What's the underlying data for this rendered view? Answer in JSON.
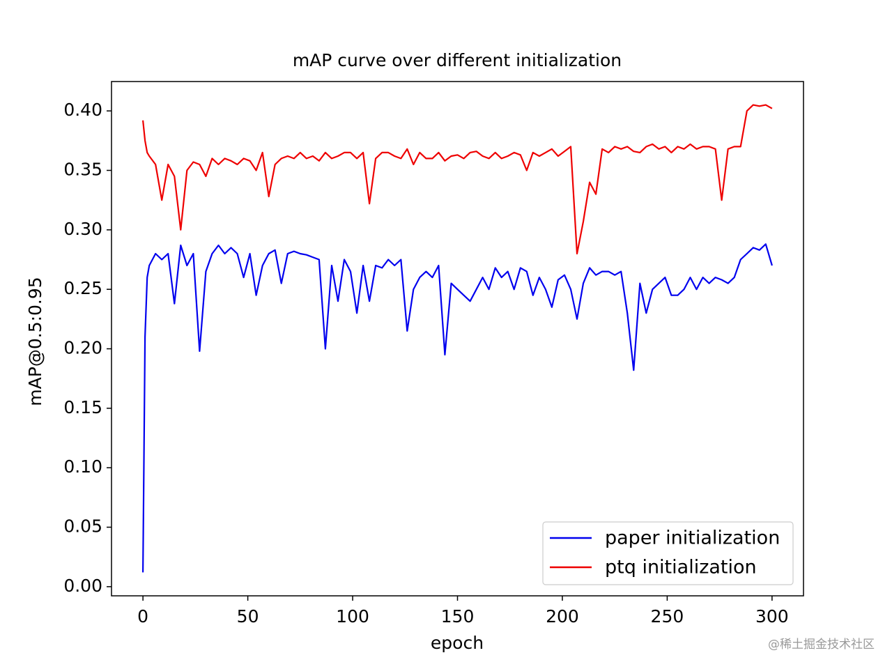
{
  "chart_data": {
    "type": "line",
    "title": "mAP curve over different initialization",
    "x_label": "epoch",
    "y_label": "mAP@0.5:0.95",
    "x": [
      0,
      1,
      2,
      3,
      6,
      9,
      12,
      15,
      18,
      21,
      24,
      27,
      30,
      33,
      36,
      39,
      42,
      45,
      48,
      51,
      54,
      57,
      60,
      63,
      66,
      69,
      72,
      75,
      78,
      81,
      84,
      87,
      90,
      93,
      96,
      99,
      102,
      105,
      108,
      111,
      114,
      117,
      120,
      123,
      126,
      129,
      132,
      135,
      138,
      141,
      144,
      147,
      150,
      153,
      156,
      159,
      162,
      165,
      168,
      171,
      174,
      177,
      180,
      183,
      186,
      189,
      192,
      195,
      198,
      201,
      204,
      207,
      210,
      213,
      216,
      219,
      222,
      225,
      228,
      231,
      234,
      237,
      240,
      243,
      246,
      249,
      252,
      255,
      258,
      261,
      264,
      267,
      270,
      273,
      276,
      279,
      282,
      285,
      288,
      291,
      294,
      297,
      300
    ],
    "series": [
      {
        "name": "paper initialization",
        "color": "#0000ee",
        "values": [
          0.012,
          0.21,
          0.26,
          0.27,
          0.28,
          0.275,
          0.28,
          0.238,
          0.287,
          0.27,
          0.28,
          0.198,
          0.265,
          0.28,
          0.287,
          0.28,
          0.285,
          0.28,
          0.26,
          0.28,
          0.245,
          0.27,
          0.28,
          0.283,
          0.255,
          0.28,
          0.282,
          0.28,
          0.279,
          0.277,
          0.275,
          0.2,
          0.27,
          0.24,
          0.275,
          0.265,
          0.23,
          0.27,
          0.24,
          0.27,
          0.268,
          0.275,
          0.27,
          0.275,
          0.215,
          0.25,
          0.26,
          0.265,
          0.26,
          0.27,
          0.195,
          0.255,
          0.25,
          0.245,
          0.24,
          0.25,
          0.26,
          0.25,
          0.268,
          0.26,
          0.265,
          0.25,
          0.268,
          0.265,
          0.245,
          0.26,
          0.25,
          0.235,
          0.258,
          0.262,
          0.25,
          0.225,
          0.255,
          0.268,
          0.262,
          0.265,
          0.265,
          0.262,
          0.265,
          0.23,
          0.182,
          0.255,
          0.23,
          0.25,
          0.255,
          0.26,
          0.245,
          0.245,
          0.25,
          0.26,
          0.25,
          0.26,
          0.255,
          0.26,
          0.258,
          0.255,
          0.26,
          0.275,
          0.28,
          0.285,
          0.283,
          0.288,
          0.27
        ]
      },
      {
        "name": "ptq initialization",
        "color": "#ee0000",
        "values": [
          0.392,
          0.375,
          0.365,
          0.362,
          0.355,
          0.325,
          0.355,
          0.345,
          0.3,
          0.35,
          0.357,
          0.355,
          0.345,
          0.36,
          0.355,
          0.36,
          0.358,
          0.355,
          0.36,
          0.358,
          0.35,
          0.365,
          0.328,
          0.355,
          0.36,
          0.362,
          0.36,
          0.365,
          0.36,
          0.362,
          0.358,
          0.365,
          0.36,
          0.362,
          0.365,
          0.365,
          0.36,
          0.365,
          0.322,
          0.36,
          0.365,
          0.365,
          0.362,
          0.36,
          0.368,
          0.355,
          0.365,
          0.36,
          0.36,
          0.365,
          0.358,
          0.362,
          0.363,
          0.36,
          0.365,
          0.366,
          0.362,
          0.36,
          0.365,
          0.36,
          0.362,
          0.365,
          0.363,
          0.35,
          0.365,
          0.362,
          0.365,
          0.368,
          0.362,
          0.366,
          0.37,
          0.28,
          0.307,
          0.34,
          0.33,
          0.368,
          0.365,
          0.37,
          0.368,
          0.37,
          0.366,
          0.365,
          0.37,
          0.372,
          0.368,
          0.37,
          0.365,
          0.37,
          0.368,
          0.372,
          0.368,
          0.37,
          0.37,
          0.368,
          0.325,
          0.368,
          0.37,
          0.37,
          0.4,
          0.405,
          0.404,
          0.405,
          0.402
        ]
      }
    ],
    "xlim": [
      -15,
      315
    ],
    "ylim": [
      -0.0077,
      0.4247
    ],
    "xticks": [
      0,
      50,
      100,
      150,
      200,
      250,
      300
    ],
    "yticks": [
      {
        "value": 0,
        "label": "0.00"
      },
      {
        "value": 0.05,
        "label": "0.05"
      },
      {
        "value": 0.1,
        "label": "0.10"
      },
      {
        "value": 0.15,
        "label": "0.15"
      },
      {
        "value": 0.2,
        "label": "0.20"
      },
      {
        "value": 0.25,
        "label": "0.25"
      },
      {
        "value": 0.3,
        "label": "0.30"
      },
      {
        "value": 0.35,
        "label": "0.35"
      },
      {
        "value": 0.4,
        "label": "0.40"
      }
    ],
    "legend": "lower right",
    "grid": false,
    "watermark": "@稀土掘金技术社区"
  }
}
